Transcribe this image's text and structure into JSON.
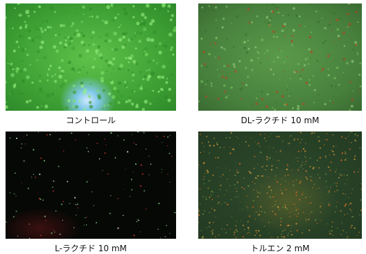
{
  "panels": [
    {
      "caption": "コントロール"
    },
    {
      "caption": "DL-ラクチド 10 mM"
    },
    {
      "caption": "L-ラクチド 10 mM"
    },
    {
      "caption": "トルエン 2 mM"
    }
  ]
}
